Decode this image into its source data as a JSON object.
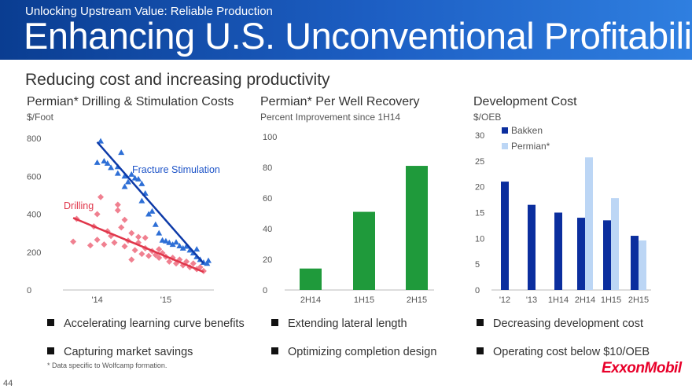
{
  "header": {
    "subtitle": "Unlocking Upstream Value: Reliable Production",
    "title": "Enhancing U.S. Unconventional Profitability"
  },
  "section_title": "Reducing cost and increasing productivity",
  "panels": {
    "costs": {
      "title": "Permian* Drilling & Stimulation Costs",
      "subtitle": "$/Foot"
    },
    "recovery": {
      "title": "Permian* Per Well Recovery",
      "subtitle": "Percent Improvement since 1H14"
    },
    "development": {
      "title": "Development Cost",
      "subtitle": "$/OEB"
    }
  },
  "bullets": {
    "costs": [
      "Accelerating learning curve benefits",
      "Capturing market savings"
    ],
    "recovery": [
      "Extending lateral length",
      "Optimizing completion design"
    ],
    "development": [
      "Decreasing development cost",
      "Operating cost below $10/OEB"
    ]
  },
  "footnote": "* Data specific to Wolfcamp formation.",
  "page_number": "44",
  "logo_text": "ExxonMobil",
  "colors": {
    "banner": "#1a56b8",
    "stimulation": "#2e6fd6",
    "drilling": "#e0364a",
    "drilling_points": "#f08090",
    "recovery_bar": "#1f9a3b",
    "bakken": "#0b2e9e",
    "permian": "#bcd6f5",
    "logo": "#e8002a"
  },
  "chart_data": [
    {
      "type": "scatter",
      "title": "Permian* Drilling & Stimulation Costs",
      "ylabel": "$/Foot",
      "ylim": [
        0,
        800
      ],
      "yticks": [
        0,
        200,
        400,
        600,
        800
      ],
      "xlim": [
        2013.5,
        2015.7
      ],
      "xticks": [
        {
          "value": 2014,
          "label": "'14"
        },
        {
          "value": 2015,
          "label": "'15"
        }
      ],
      "series": [
        {
          "name": "Fracture Stimulation",
          "marker": "triangle",
          "points": [
            [
              2014.05,
              785
            ],
            [
              2014.0,
              672
            ],
            [
              2014.1,
              680
            ],
            [
              2014.15,
              668
            ],
            [
              2014.2,
              645
            ],
            [
              2014.35,
              725
            ],
            [
              2014.3,
              650
            ],
            [
              2014.3,
              615
            ],
            [
              2014.4,
              600
            ],
            [
              2014.5,
              610
            ],
            [
              2014.55,
              590
            ],
            [
              2014.45,
              570
            ],
            [
              2014.6,
              585
            ],
            [
              2014.65,
              560
            ],
            [
              2014.4,
              545
            ],
            [
              2014.7,
              510
            ],
            [
              2014.65,
              470
            ],
            [
              2014.8,
              415
            ],
            [
              2014.75,
              400
            ],
            [
              2014.85,
              345
            ],
            [
              2014.9,
              300
            ],
            [
              2014.95,
              262
            ],
            [
              2015.0,
              258
            ],
            [
              2015.05,
              250
            ],
            [
              2015.1,
              240
            ],
            [
              2015.15,
              252
            ],
            [
              2015.2,
              232
            ],
            [
              2015.25,
              220
            ],
            [
              2015.3,
              230
            ],
            [
              2015.35,
              210
            ],
            [
              2015.4,
              195
            ],
            [
              2015.45,
              215
            ],
            [
              2015.45,
              175
            ],
            [
              2015.5,
              160
            ],
            [
              2015.55,
              145
            ],
            [
              2015.6,
              140
            ],
            [
              2015.62,
              155
            ]
          ],
          "trend": [
            [
              2014.0,
              780
            ],
            [
              2015.55,
              140
            ]
          ]
        },
        {
          "name": "Drilling",
          "marker": "diamond",
          "points": [
            [
              2013.65,
              255
            ],
            [
              2013.7,
              375
            ],
            [
              2013.9,
              235
            ],
            [
              2013.95,
              335
            ],
            [
              2014.0,
              265
            ],
            [
              2014.0,
              400
            ],
            [
              2014.05,
              490
            ],
            [
              2014.1,
              240
            ],
            [
              2014.15,
              310
            ],
            [
              2014.2,
              285
            ],
            [
              2014.25,
              250
            ],
            [
              2014.3,
              420
            ],
            [
              2014.3,
              450
            ],
            [
              2014.35,
              330
            ],
            [
              2014.4,
              370
            ],
            [
              2014.4,
              230
            ],
            [
              2014.45,
              260
            ],
            [
              2014.5,
              300
            ],
            [
              2014.5,
              160
            ],
            [
              2014.55,
              210
            ],
            [
              2014.6,
              250
            ],
            [
              2014.6,
              280
            ],
            [
              2014.65,
              190
            ],
            [
              2014.7,
              220
            ],
            [
              2014.7,
              275
            ],
            [
              2014.75,
              180
            ],
            [
              2014.8,
              205
            ],
            [
              2014.85,
              185
            ],
            [
              2014.9,
              215
            ],
            [
              2014.9,
              170
            ],
            [
              2014.95,
              195
            ],
            [
              2015.0,
              175
            ],
            [
              2015.05,
              150
            ],
            [
              2015.1,
              170
            ],
            [
              2015.15,
              140
            ],
            [
              2015.2,
              160
            ],
            [
              2015.25,
              130
            ],
            [
              2015.3,
              150
            ],
            [
              2015.35,
              120
            ],
            [
              2015.4,
              140
            ],
            [
              2015.45,
              110
            ],
            [
              2015.5,
              120
            ],
            [
              2015.55,
              100
            ]
          ],
          "trend": [
            [
              2013.65,
              380
            ],
            [
              2015.55,
              95
            ]
          ]
        }
      ],
      "annotations": [
        "Fracture Stimulation",
        "Drilling"
      ]
    },
    {
      "type": "bar",
      "title": "Permian* Per Well Recovery",
      "ylabel": "Percent Improvement since 1H14",
      "ylim": [
        0,
        100
      ],
      "yticks": [
        0,
        20,
        40,
        60,
        80,
        100
      ],
      "categories": [
        "2H14",
        "1H15",
        "2H15"
      ],
      "values": [
        14,
        51,
        81
      ]
    },
    {
      "type": "bar",
      "title": "Development Cost",
      "ylabel": "$/OEB",
      "ylim": [
        0,
        30
      ],
      "yticks": [
        0,
        5,
        10,
        15,
        20,
        25,
        30
      ],
      "categories": [
        "'12",
        "'13",
        "1H14",
        "2H14",
        "1H15",
        "2H15"
      ],
      "series": [
        {
          "name": "Bakken",
          "values": [
            21,
            16.5,
            15,
            14,
            13.5,
            10.5
          ]
        },
        {
          "name": "Permian*",
          "values": [
            null,
            null,
            null,
            25.7,
            17.8,
            9.6
          ]
        }
      ]
    }
  ]
}
